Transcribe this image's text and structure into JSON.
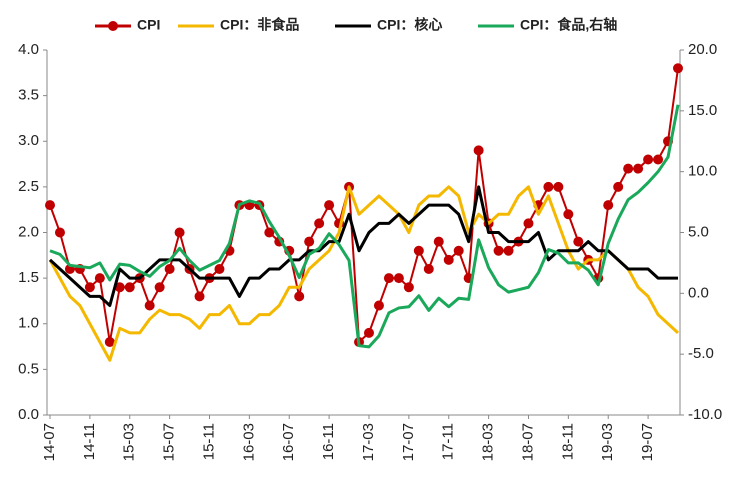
{
  "chart_data": {
    "type": "line",
    "categories": [
      "14-07",
      null,
      null,
      null,
      "14-11",
      null,
      null,
      null,
      "15-03",
      null,
      null,
      null,
      "15-07",
      null,
      null,
      null,
      "15-11",
      null,
      null,
      null,
      "16-03",
      null,
      null,
      null,
      "16-07",
      null,
      null,
      null,
      "16-11",
      null,
      null,
      null,
      "17-03",
      null,
      null,
      null,
      "17-07",
      null,
      null,
      null,
      "17-11",
      null,
      null,
      null,
      "18-03",
      null,
      null,
      null,
      "18-07",
      null,
      null,
      null,
      "18-11",
      null,
      null,
      null,
      "19-03",
      null,
      null,
      null,
      "19-07",
      null,
      null,
      null
    ],
    "series": [
      {
        "name": "CPI",
        "color": "#c00000",
        "marker": true,
        "values": [
          2.3,
          2.0,
          1.6,
          1.6,
          1.4,
          1.5,
          0.8,
          1.4,
          1.4,
          1.5,
          1.2,
          1.4,
          1.6,
          2.0,
          1.6,
          1.3,
          1.5,
          1.6,
          1.8,
          2.3,
          2.3,
          2.3,
          2.0,
          1.9,
          1.8,
          1.3,
          1.9,
          2.1,
          2.3,
          2.1,
          2.5,
          0.8,
          0.9,
          1.2,
          1.5,
          1.5,
          1.4,
          1.8,
          1.6,
          1.9,
          1.7,
          1.8,
          1.5,
          2.9,
          2.1,
          1.8,
          1.8,
          1.9,
          2.1,
          2.3,
          2.5,
          2.5,
          2.2,
          1.9,
          1.7,
          1.5,
          2.3,
          2.5,
          2.7,
          2.7,
          2.8,
          2.8,
          3.0,
          3.8
        ]
      },
      {
        "name": "CPI：非食品",
        "color": "#f5b800",
        "values": [
          1.7,
          1.5,
          1.3,
          1.2,
          1.0,
          0.8,
          0.6,
          0.95,
          0.9,
          0.9,
          1.05,
          1.15,
          1.1,
          1.1,
          1.05,
          0.95,
          1.1,
          1.1,
          1.2,
          1.0,
          1.0,
          1.1,
          1.1,
          1.2,
          1.4,
          1.4,
          1.6,
          1.7,
          1.8,
          2.0,
          2.5,
          2.2,
          2.3,
          2.4,
          2.3,
          2.2,
          2.0,
          2.3,
          2.4,
          2.4,
          2.5,
          2.4,
          2.0,
          2.2,
          2.1,
          2.2,
          2.2,
          2.4,
          2.5,
          2.2,
          2.4,
          2.1,
          1.8,
          1.6,
          1.7,
          1.7,
          1.8,
          1.7,
          1.6,
          1.4,
          1.3,
          1.1,
          1.0,
          0.9
        ]
      },
      {
        "name": "CPI：核心",
        "color": "#000000",
        "values": [
          1.7,
          1.6,
          1.5,
          1.4,
          1.3,
          1.3,
          1.2,
          1.6,
          1.5,
          1.5,
          1.6,
          1.7,
          1.7,
          1.7,
          1.6,
          1.5,
          1.5,
          1.5,
          1.5,
          1.3,
          1.5,
          1.5,
          1.6,
          1.6,
          1.7,
          1.7,
          1.8,
          1.8,
          1.9,
          1.9,
          2.2,
          1.8,
          2.0,
          2.1,
          2.1,
          2.2,
          2.1,
          2.2,
          2.3,
          2.3,
          2.3,
          2.2,
          1.9,
          2.5,
          2.0,
          2.0,
          1.9,
          1.9,
          1.9,
          2.0,
          1.7,
          1.8,
          1.8,
          1.8,
          1.9,
          1.8,
          1.8,
          1.7,
          1.6,
          1.6,
          1.6,
          1.5,
          1.5,
          1.5
        ]
      },
      {
        "name": "CPI：食品,右轴",
        "color": "#1aa85a",
        "axis": "y2",
        "values": [
          3.5,
          3.2,
          2.3,
          2.2,
          2.1,
          2.5,
          1.1,
          2.4,
          2.3,
          1.8,
          1.4,
          2.2,
          2.7,
          3.7,
          2.7,
          1.9,
          2.3,
          2.7,
          4.1,
          7.3,
          7.6,
          7.4,
          5.9,
          4.6,
          3.1,
          1.3,
          3.2,
          3.7,
          4.9,
          4.0,
          2.7,
          -4.3,
          -4.4,
          -3.5,
          -1.6,
          -1.2,
          -1.1,
          -0.2,
          -1.4,
          -0.4,
          -1.1,
          -0.4,
          -0.5,
          4.4,
          2.1,
          0.7,
          0.1,
          0.3,
          0.5,
          1.7,
          3.6,
          3.3,
          2.5,
          2.5,
          1.9,
          0.7,
          4.1,
          6.1,
          7.7,
          8.3,
          9.1,
          10.0,
          11.2,
          15.5
        ]
      }
    ],
    "ylim": [
      0,
      4
    ],
    "yticks": [
      {
        "value": 0,
        "label": "0.0"
      },
      {
        "value": 0.5,
        "label": "0.5"
      },
      {
        "value": 1,
        "label": "1.0"
      },
      {
        "value": 1.5,
        "label": "1.5"
      },
      {
        "value": 2,
        "label": "2.0"
      },
      {
        "value": 2.5,
        "label": "2.5"
      },
      {
        "value": 3,
        "label": "3.0"
      },
      {
        "value": 3.5,
        "label": "3.5"
      },
      {
        "value": 4,
        "label": "4.0"
      }
    ],
    "y2lim": [
      -10,
      20
    ],
    "y2ticks": [
      {
        "value": -10,
        "label": "-10.0"
      },
      {
        "value": -5,
        "label": "-5.0"
      },
      {
        "value": 0,
        "label": "0.0"
      },
      {
        "value": 5,
        "label": "5.0"
      },
      {
        "value": 10,
        "label": "10.0"
      },
      {
        "value": 15,
        "label": "15.0"
      },
      {
        "value": 20,
        "label": "20.0"
      }
    ],
    "legend": "top",
    "grid": false
  }
}
